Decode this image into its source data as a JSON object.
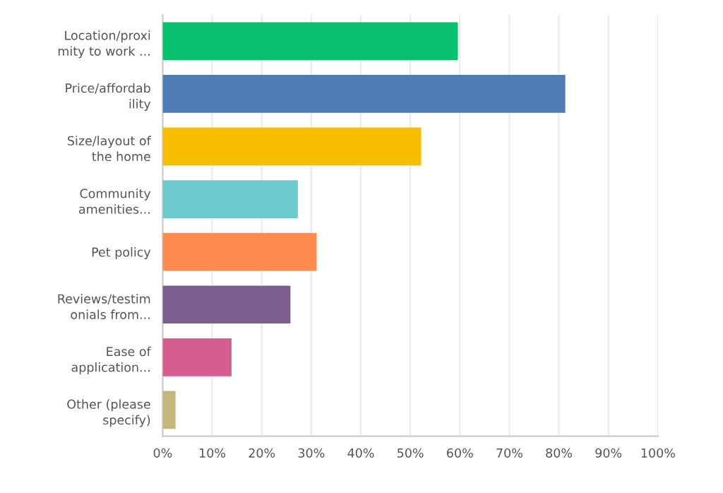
{
  "chart_data": {
    "type": "bar",
    "orientation": "horizontal",
    "categories": [
      "Location/proximity to work ...",
      "Price/affordability",
      "Size/layout of the home",
      "Community amenities...",
      "Pet policy",
      "Reviews/testimonials from...",
      "Ease of application...",
      "Other (please specify)"
    ],
    "values": [
      59.6,
      81.3,
      52.2,
      27.3,
      31.1,
      25.8,
      13.9,
      2.6
    ],
    "colors": [
      "#07c06e",
      "#507cb6",
      "#f8be00",
      "#6ccacd",
      "#ff8b4f",
      "#7b5d8f",
      "#d65e8e",
      "#c8b77b"
    ],
    "xlim": [
      0,
      100
    ],
    "xticks": [
      {
        "value": 0,
        "label": "0%"
      },
      {
        "value": 10,
        "label": "10%"
      },
      {
        "value": 20,
        "label": "20%"
      },
      {
        "value": 30,
        "label": "30%"
      },
      {
        "value": 40,
        "label": "40%"
      },
      {
        "value": 50,
        "label": "50%"
      },
      {
        "value": 60,
        "label": "60%"
      },
      {
        "value": 70,
        "label": "70%"
      },
      {
        "value": 80,
        "label": "80%"
      },
      {
        "value": 90,
        "label": "90%"
      },
      {
        "value": 100,
        "label": "100%"
      }
    ],
    "grid": "x",
    "legend": false
  }
}
